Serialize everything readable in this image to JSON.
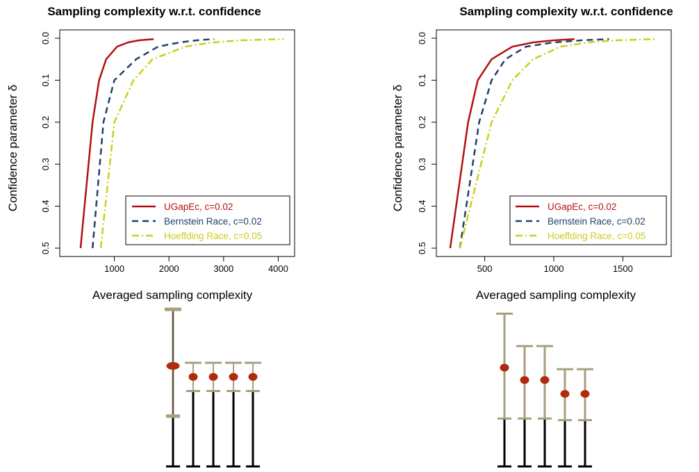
{
  "colors": {
    "ugapec": "#b40f0f",
    "bernstein": "#1f3f6b",
    "hoeffding": "#c8cf1c",
    "bar_black": "#000000",
    "bar_tan": "#a89f7c",
    "dot": "#b02a0c"
  },
  "chart_data": [
    {
      "type": "line",
      "title": "Sampling complexity w.r.t. confidence",
      "xlabel": "Averaged sampling complexity",
      "ylabel": "Confidence parameter  δ",
      "xlim": [
        0,
        4300
      ],
      "ylim": [
        0.5,
        0.0
      ],
      "y_reversed": true,
      "xticks": [
        1000,
        2000,
        3000,
        4000
      ],
      "xtick_labels": [
        "1000",
        "2000",
        "3000",
        "4000"
      ],
      "yticks": [
        0.0,
        0.1,
        0.2,
        0.3,
        0.4,
        0.5
      ],
      "ytick_labels": [
        "0.0",
        "0.1",
        "0.2",
        "0.3",
        "0.4",
        "0.5"
      ],
      "legend_position": "bottom-right",
      "series": [
        {
          "name": "UGapEc, c=0.02",
          "style": "solid",
          "color_key": "ugapec",
          "x": [
            380,
            600,
            720,
            850,
            1050,
            1250,
            1450,
            1720
          ],
          "y": [
            0.5,
            0.2,
            0.1,
            0.05,
            0.02,
            0.01,
            0.005,
            0.002
          ]
        },
        {
          "name": "Bernstein Race, c=0.02",
          "style": "dashed",
          "color_key": "bernstein",
          "x": [
            600,
            800,
            1000,
            1400,
            1800,
            2200,
            2500,
            2830
          ],
          "y": [
            0.5,
            0.2,
            0.1,
            0.05,
            0.02,
            0.01,
            0.005,
            0.002
          ]
        },
        {
          "name": "Hoeffding Race, c=0.05",
          "style": "dotdash",
          "color_key": "hoeffding",
          "x": [
            750,
            1000,
            1350,
            1700,
            2300,
            2800,
            3300,
            4100
          ],
          "y": [
            0.5,
            0.2,
            0.1,
            0.05,
            0.02,
            0.01,
            0.005,
            0.002
          ]
        }
      ]
    },
    {
      "type": "line",
      "title": "Sampling complexity w.r.t. confidence",
      "xlabel": "Averaged sampling complexity",
      "ylabel": "Confidence parameter  δ",
      "xlim": [
        150,
        1850
      ],
      "ylim": [
        0.5,
        0.0
      ],
      "y_reversed": true,
      "xticks": [
        500,
        1000,
        1500
      ],
      "xtick_labels": [
        "500",
        "1000",
        "1500"
      ],
      "yticks": [
        0.0,
        0.1,
        0.2,
        0.3,
        0.4,
        0.5
      ],
      "ytick_labels": [
        "0.0",
        "0.1",
        "0.2",
        "0.3",
        "0.4",
        "0.5"
      ],
      "legend_position": "bottom-right",
      "series": [
        {
          "name": "UGapEc, c=0.02",
          "style": "solid",
          "color_key": "ugapec",
          "x": [
            250,
            380,
            450,
            550,
            700,
            850,
            1000,
            1150
          ],
          "y": [
            0.5,
            0.2,
            0.1,
            0.05,
            0.02,
            0.01,
            0.005,
            0.002
          ]
        },
        {
          "name": "Bernstein Race, c=0.02",
          "style": "dashed",
          "color_key": "bernstein",
          "x": [
            320,
            460,
            550,
            650,
            800,
            1000,
            1200,
            1400
          ],
          "y": [
            0.5,
            0.2,
            0.1,
            0.05,
            0.02,
            0.01,
            0.005,
            0.002
          ]
        },
        {
          "name": "Hoeffding Race, c=0.05",
          "style": "dotdash",
          "color_key": "hoeffding",
          "x": [
            320,
            550,
            700,
            850,
            1050,
            1250,
            1450,
            1750
          ],
          "y": [
            0.5,
            0.2,
            0.1,
            0.05,
            0.02,
            0.01,
            0.005,
            0.002
          ]
        }
      ]
    },
    {
      "type": "bar",
      "title": "",
      "ylim": [
        0,
        1
      ],
      "bars": [
        {
          "lower": 0.0,
          "inner": 0.32,
          "upper": 1.0,
          "dot": 0.64,
          "tan": true
        },
        {
          "lower": 0.0,
          "inner": 0.48,
          "upper": 0.66,
          "dot": 0.57,
          "tan": false
        },
        {
          "lower": 0.0,
          "inner": 0.48,
          "upper": 0.66,
          "dot": 0.57,
          "tan": false
        },
        {
          "lower": 0.0,
          "inner": 0.48,
          "upper": 0.66,
          "dot": 0.57,
          "tan": false
        },
        {
          "lower": 0.0,
          "inner": 0.48,
          "upper": 0.66,
          "dot": 0.57,
          "tan": false
        }
      ]
    },
    {
      "type": "bar",
      "title": "",
      "ylim": [
        0,
        1
      ],
      "bars": [
        {
          "lower": 0.0,
          "inner": 0.31,
          "upper": 0.99,
          "dot": 0.64,
          "tan": true
        },
        {
          "lower": 0.0,
          "inner": 0.31,
          "upper": 0.78,
          "dot": 0.56,
          "tan": true
        },
        {
          "lower": 0.0,
          "inner": 0.31,
          "upper": 0.78,
          "dot": 0.56,
          "tan": true
        },
        {
          "lower": 0.0,
          "inner": 0.3,
          "upper": 0.63,
          "dot": 0.47,
          "tan": true
        },
        {
          "lower": 0.0,
          "inner": 0.3,
          "upper": 0.63,
          "dot": 0.47,
          "tan": true
        }
      ]
    }
  ]
}
